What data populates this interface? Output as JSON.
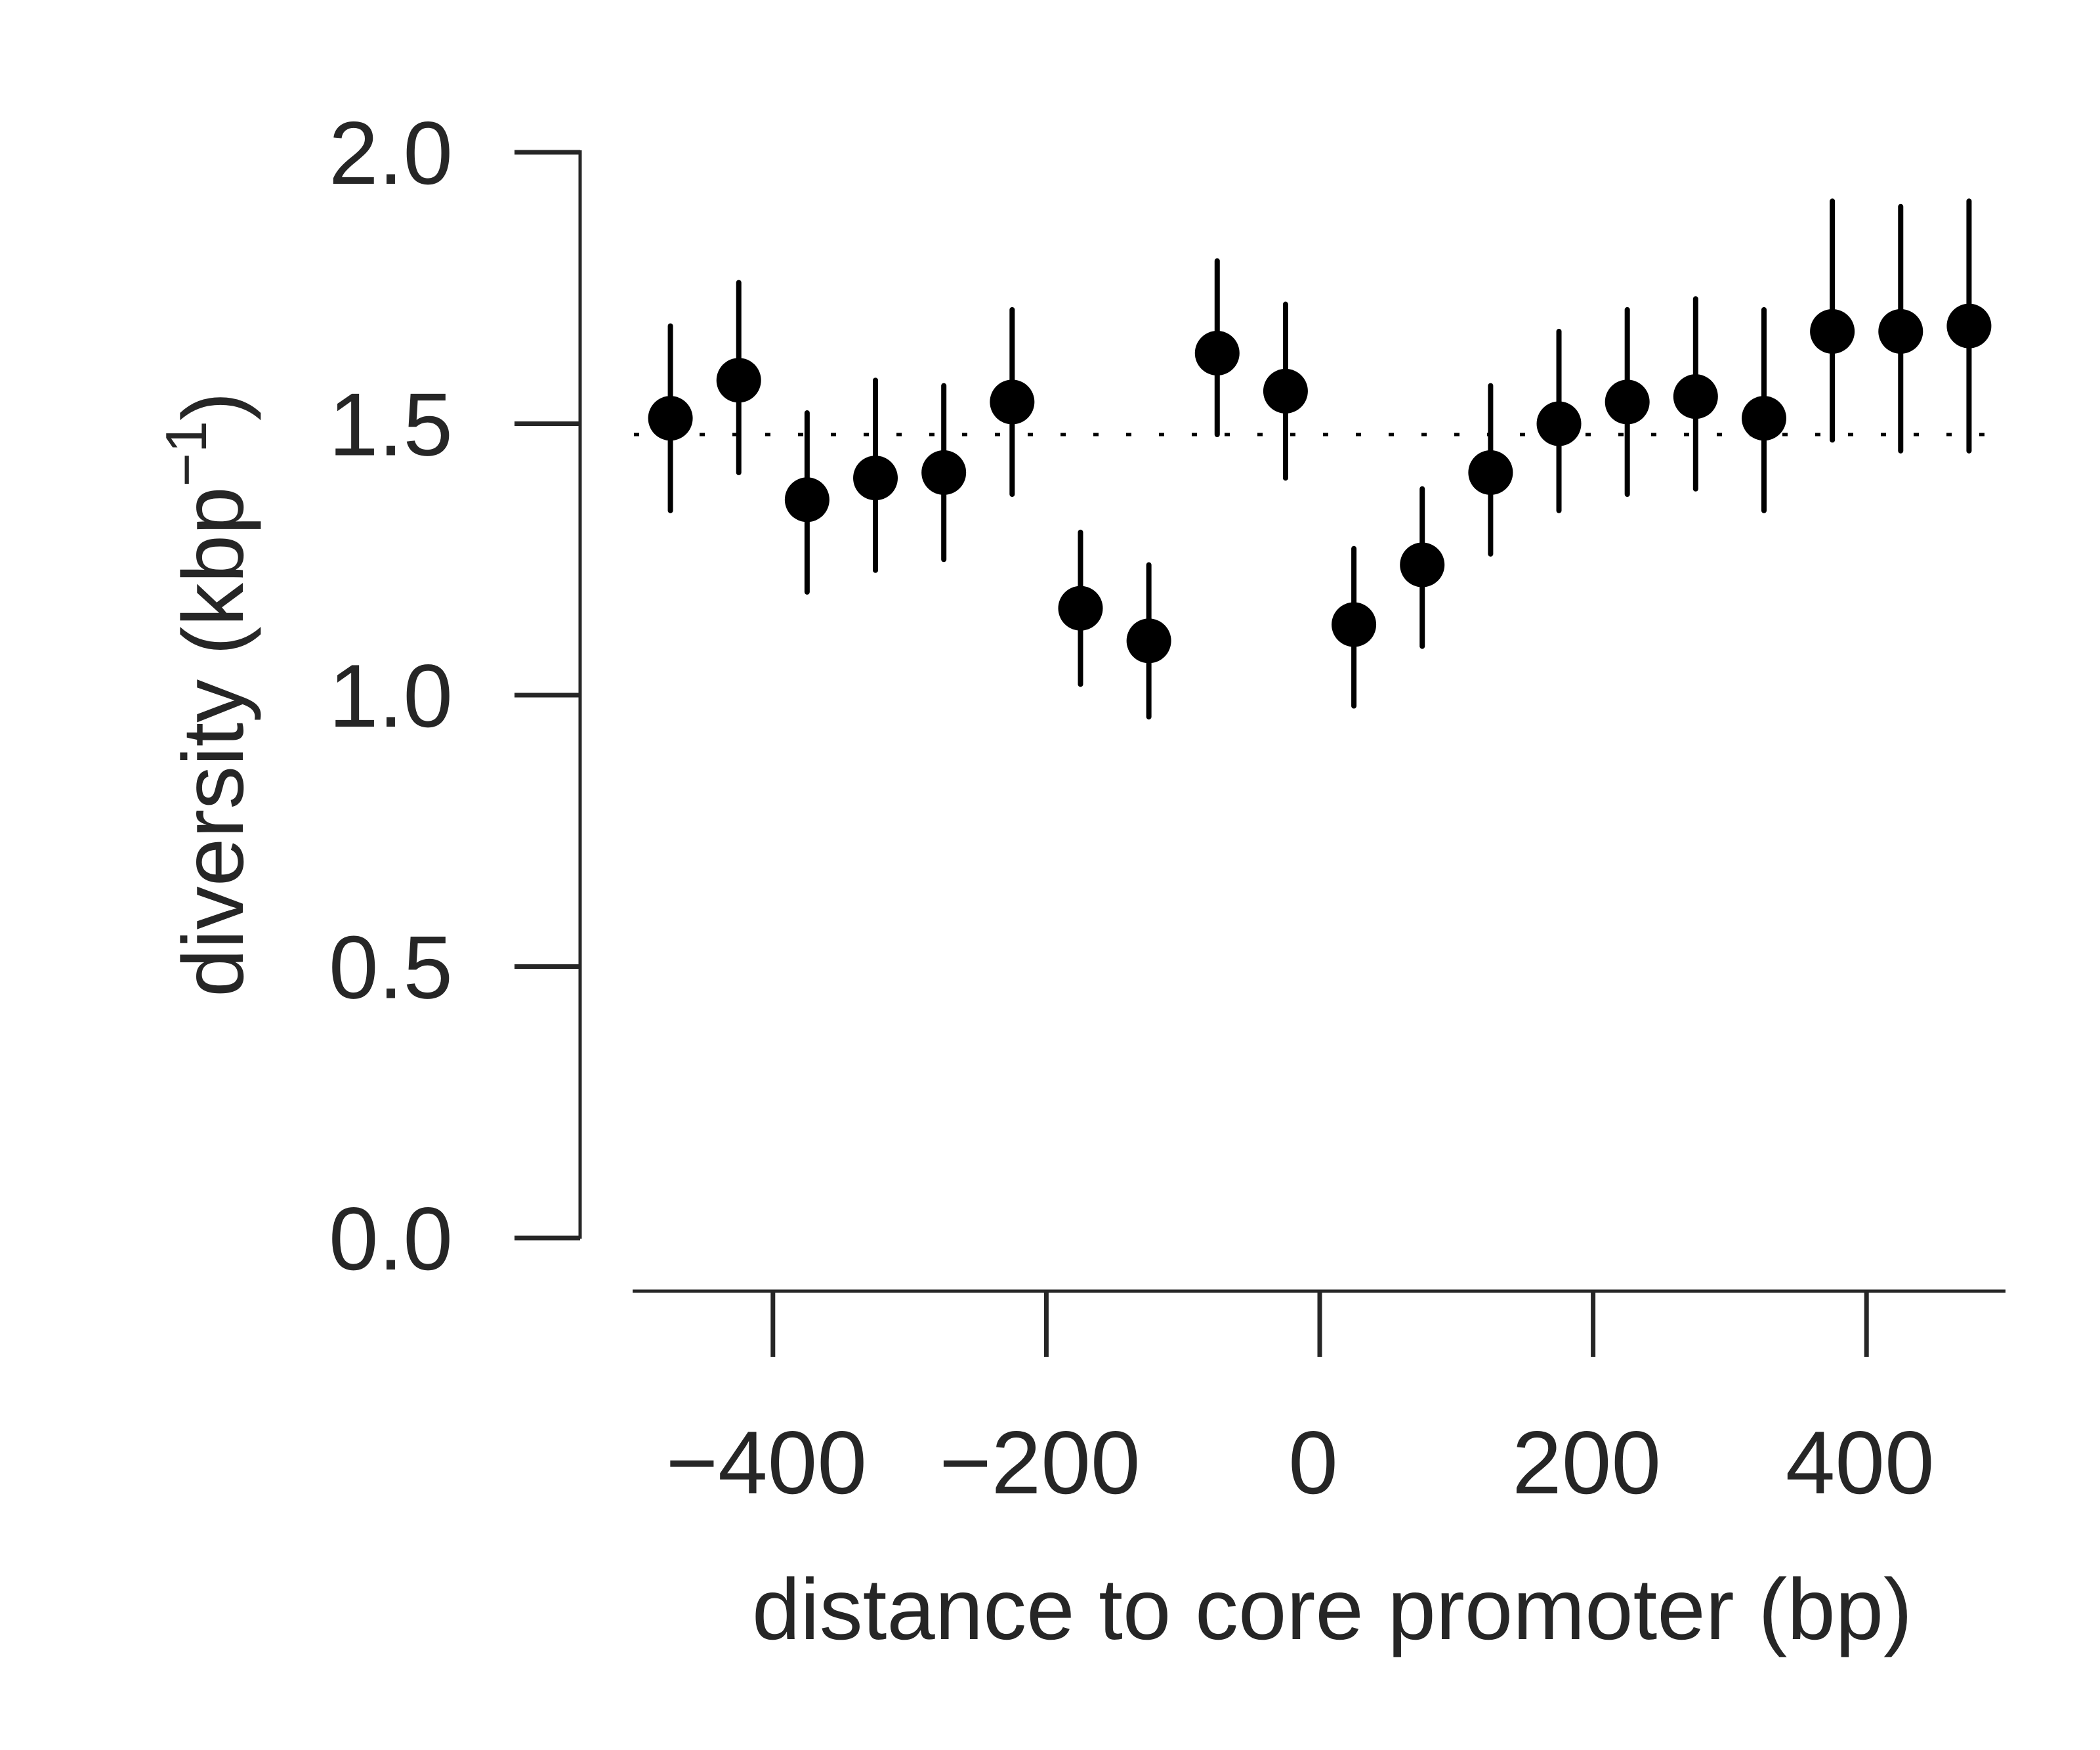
{
  "chart_data": {
    "type": "scatter",
    "title": "",
    "xlabel": "distance to core promoter (bp)",
    "ylabel_main": "diversity (kbp",
    "ylabel_sup": "−1",
    "ylabel_close": ")",
    "xlim": [
      -500,
      500
    ],
    "ylim": [
      0,
      2.0
    ],
    "xticks": [
      -400,
      -200,
      0,
      200,
      400
    ],
    "xtick_labels": [
      "−400",
      "−200",
      "0",
      "200",
      "400"
    ],
    "yticks": [
      0.0,
      0.5,
      1.0,
      1.5,
      2.0
    ],
    "ytick_labels": [
      "0.0",
      "0.5",
      "1.0",
      "1.5",
      "2.0"
    ],
    "reference_line_y": 1.48,
    "grid": false,
    "points": [
      {
        "x": -475,
        "y": 1.51,
        "lower": 1.34,
        "upper": 1.68
      },
      {
        "x": -425,
        "y": 1.58,
        "lower": 1.41,
        "upper": 1.76
      },
      {
        "x": -375,
        "y": 1.36,
        "lower": 1.19,
        "upper": 1.52
      },
      {
        "x": -325,
        "y": 1.4,
        "lower": 1.23,
        "upper": 1.58
      },
      {
        "x": -275,
        "y": 1.41,
        "lower": 1.25,
        "upper": 1.57
      },
      {
        "x": -225,
        "y": 1.54,
        "lower": 1.37,
        "upper": 1.71
      },
      {
        "x": -175,
        "y": 1.16,
        "lower": 1.02,
        "upper": 1.3
      },
      {
        "x": -125,
        "y": 1.1,
        "lower": 0.96,
        "upper": 1.24
      },
      {
        "x": -75,
        "y": 1.63,
        "lower": 1.48,
        "upper": 1.8
      },
      {
        "x": -25,
        "y": 1.56,
        "lower": 1.4,
        "upper": 1.72
      },
      {
        "x": 25,
        "y": 1.13,
        "lower": 0.98,
        "upper": 1.27
      },
      {
        "x": 75,
        "y": 1.24,
        "lower": 1.09,
        "upper": 1.38
      },
      {
        "x": 125,
        "y": 1.41,
        "lower": 1.26,
        "upper": 1.57
      },
      {
        "x": 175,
        "y": 1.5,
        "lower": 1.34,
        "upper": 1.67
      },
      {
        "x": 225,
        "y": 1.54,
        "lower": 1.37,
        "upper": 1.71
      },
      {
        "x": 275,
        "y": 1.55,
        "lower": 1.38,
        "upper": 1.73
      },
      {
        "x": 325,
        "y": 1.51,
        "lower": 1.34,
        "upper": 1.71
      },
      {
        "x": 375,
        "y": 1.67,
        "lower": 1.47,
        "upper": 1.91
      },
      {
        "x": 425,
        "y": 1.67,
        "lower": 1.45,
        "upper": 1.9
      },
      {
        "x": 475,
        "y": 1.68,
        "lower": 1.45,
        "upper": 1.91
      }
    ]
  }
}
